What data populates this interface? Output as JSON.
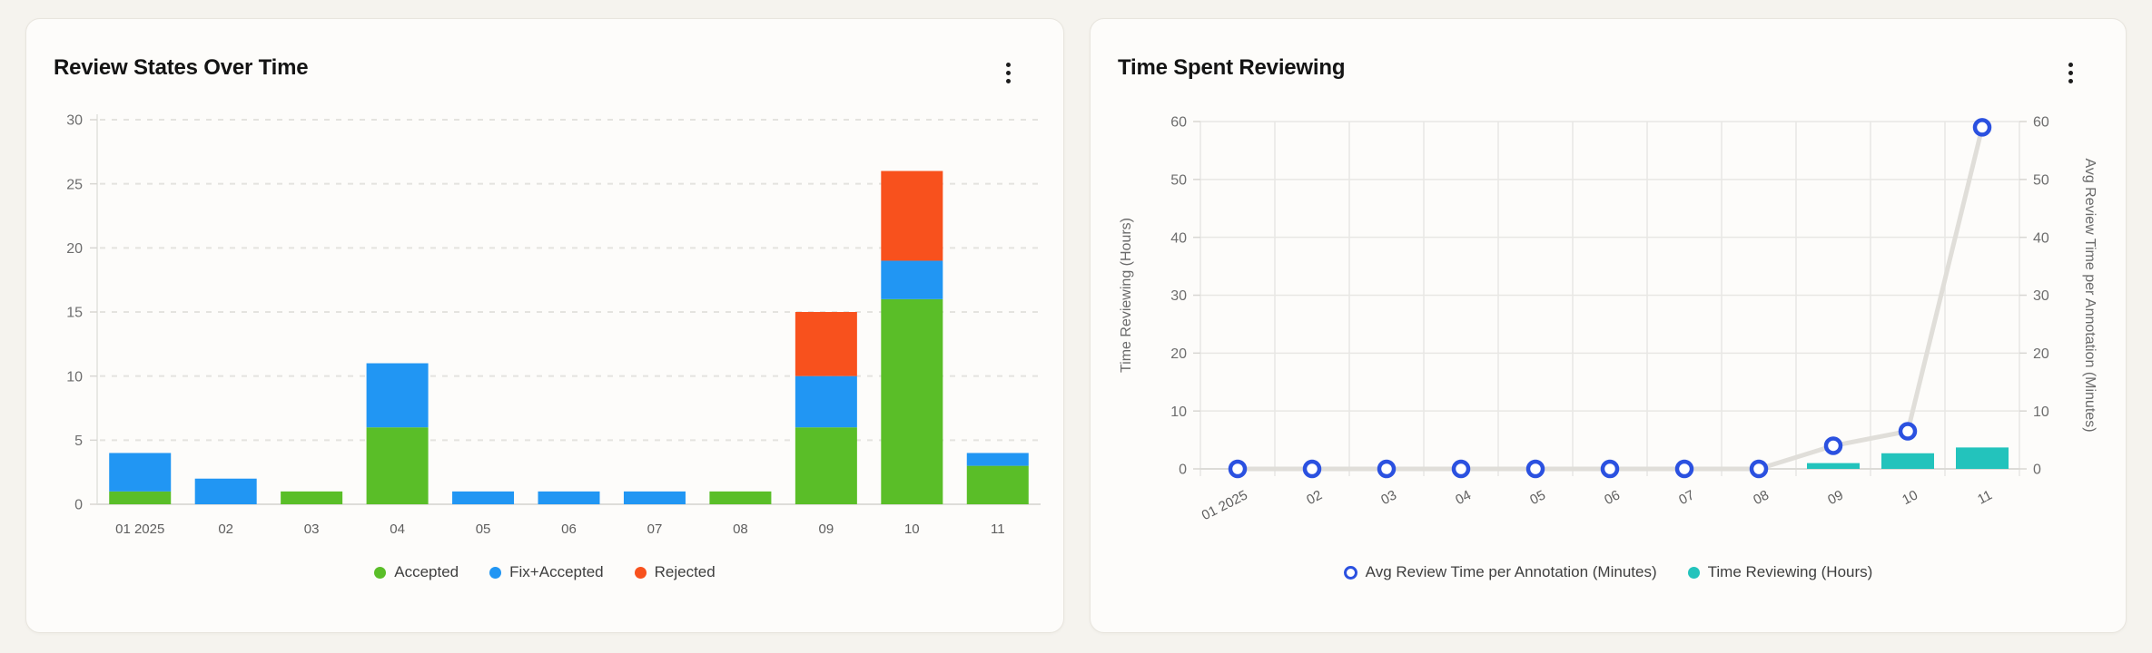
{
  "page_background": "#f5f3ee",
  "icons": {
    "card_menu": "kebab-menu-icon",
    "legend_dot": "dot-marker-icon",
    "legend_ring": "open-circle-marker-icon"
  },
  "chart_data": [
    {
      "type": "bar",
      "stacked": true,
      "title": "Review States Over Time",
      "categories": [
        "01 2025",
        "02",
        "03",
        "04",
        "05",
        "06",
        "07",
        "08",
        "09",
        "10",
        "11"
      ],
      "series": [
        {
          "name": "Accepted",
          "color": "#5abe28",
          "values": [
            1,
            0,
            1,
            6,
            0,
            0,
            0,
            1,
            6,
            16,
            3
          ]
        },
        {
          "name": "Fix+Accepted",
          "color": "#2196f3",
          "values": [
            3,
            2,
            0,
            5,
            1,
            1,
            1,
            0,
            4,
            3,
            1
          ]
        },
        {
          "name": "Rejected",
          "color": "#f8511d",
          "values": [
            0,
            0,
            0,
            0,
            0,
            0,
            0,
            0,
            5,
            7,
            0
          ]
        }
      ],
      "totals": [
        4,
        2,
        1,
        11,
        1,
        1,
        1,
        1,
        15,
        26,
        4
      ],
      "xlabel": "",
      "ylabel": "",
      "ylim": [
        0,
        30
      ],
      "ytick_step": 5,
      "grid": "horizontal-dashed",
      "legend_position": "bottom",
      "legend": [
        {
          "label": "Accepted",
          "marker": "dot",
          "color": "#5abe28"
        },
        {
          "label": "Fix+Accepted",
          "marker": "dot",
          "color": "#2196f3"
        },
        {
          "label": "Rejected",
          "marker": "dot",
          "color": "#f8511d"
        }
      ]
    },
    {
      "type": "combo",
      "title": "Time Spent Reviewing",
      "categories": [
        "01 2025",
        "02",
        "03",
        "04",
        "05",
        "06",
        "07",
        "08",
        "09",
        "10",
        "11"
      ],
      "series": [
        {
          "name": "Time Reviewing (Hours)",
          "chart": "bar",
          "axis": "left",
          "color": "#23c3bc",
          "values": [
            0,
            0,
            0,
            0,
            0,
            0,
            0,
            0,
            1,
            2.7,
            3.7
          ]
        },
        {
          "name": "Avg Review Time per Annotation (Minutes)",
          "chart": "line",
          "axis": "right",
          "color": "#2b51e0",
          "line_color": "#e0ded9",
          "marker": "open-circle",
          "values": [
            0,
            0,
            0,
            0,
            0,
            0,
            0,
            0,
            4,
            6.5,
            59
          ]
        }
      ],
      "left_axis": {
        "label": "Time Reviewing (Hours)",
        "ylim": [
          0,
          60
        ],
        "tick_step": 10
      },
      "right_axis": {
        "label": "Avg Review Time per Annotation (Minutes)",
        "ylim": [
          0,
          60
        ],
        "tick_step": 10
      },
      "grid": "solid-horizontal-and-vertical",
      "legend_position": "bottom",
      "legend": [
        {
          "label": "Avg Review Time per Annotation (Minutes)",
          "marker": "ring",
          "color": "#2b51e0"
        },
        {
          "label": "Time Reviewing (Hours)",
          "marker": "dot",
          "color": "#23c3bc"
        }
      ]
    }
  ]
}
